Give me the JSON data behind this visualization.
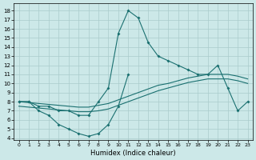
{
  "background_color": "#cce8e8",
  "grid_color": "#aacccc",
  "line_color": "#1a7070",
  "xlabel": "Humidex (Indice chaleur)",
  "xlim": [
    -0.5,
    23.5
  ],
  "ylim": [
    3.8,
    18.8
  ],
  "xticks": [
    0,
    1,
    2,
    3,
    4,
    5,
    6,
    7,
    8,
    9,
    10,
    11,
    12,
    13,
    14,
    15,
    16,
    17,
    18,
    19,
    20,
    21,
    22,
    23
  ],
  "yticks": [
    4,
    5,
    6,
    7,
    8,
    9,
    10,
    11,
    12,
    13,
    14,
    15,
    16,
    17,
    18
  ],
  "line_peak_x": [
    0,
    1,
    2,
    3,
    4,
    5,
    6,
    7,
    8,
    9,
    10,
    11,
    12,
    13,
    14,
    15,
    16,
    17,
    18,
    19,
    20,
    21,
    22,
    23
  ],
  "line_peak_y": [
    8,
    8,
    7.5,
    7.5,
    7.0,
    7.0,
    6.5,
    6.5,
    8.0,
    9.5,
    15.5,
    18.0,
    17.2,
    14.5,
    13.0,
    12.5,
    12.0,
    11.5,
    11.0,
    11.0,
    12.0,
    9.5,
    7.0,
    8.0
  ],
  "line_low_x": [
    0,
    1,
    2,
    3,
    4,
    5,
    6,
    7,
    8,
    9,
    10,
    11
  ],
  "line_low_y": [
    8,
    8,
    7.0,
    6.5,
    5.5,
    5.0,
    4.5,
    4.2,
    4.5,
    5.5,
    7.5,
    11.0
  ],
  "line_mid1_x": [
    0,
    1,
    2,
    3,
    4,
    5,
    6,
    7,
    8,
    9,
    10,
    11,
    12,
    13,
    14,
    15,
    16,
    17,
    18,
    19,
    20,
    21,
    22,
    23
  ],
  "line_mid1_y": [
    8.0,
    7.9,
    7.8,
    7.7,
    7.6,
    7.5,
    7.4,
    7.4,
    7.6,
    7.8,
    8.2,
    8.6,
    9.0,
    9.4,
    9.8,
    10.0,
    10.3,
    10.6,
    10.8,
    11.0,
    11.0,
    11.0,
    10.8,
    10.5
  ],
  "line_mid2_x": [
    0,
    1,
    2,
    3,
    4,
    5,
    6,
    7,
    8,
    9,
    10,
    11,
    12,
    13,
    14,
    15,
    16,
    17,
    18,
    19,
    20,
    21,
    22,
    23
  ],
  "line_mid2_y": [
    7.5,
    7.4,
    7.3,
    7.2,
    7.1,
    7.0,
    6.9,
    6.9,
    7.0,
    7.2,
    7.6,
    8.0,
    8.4,
    8.8,
    9.2,
    9.5,
    9.8,
    10.1,
    10.3,
    10.5,
    10.5,
    10.5,
    10.3,
    10.0
  ]
}
